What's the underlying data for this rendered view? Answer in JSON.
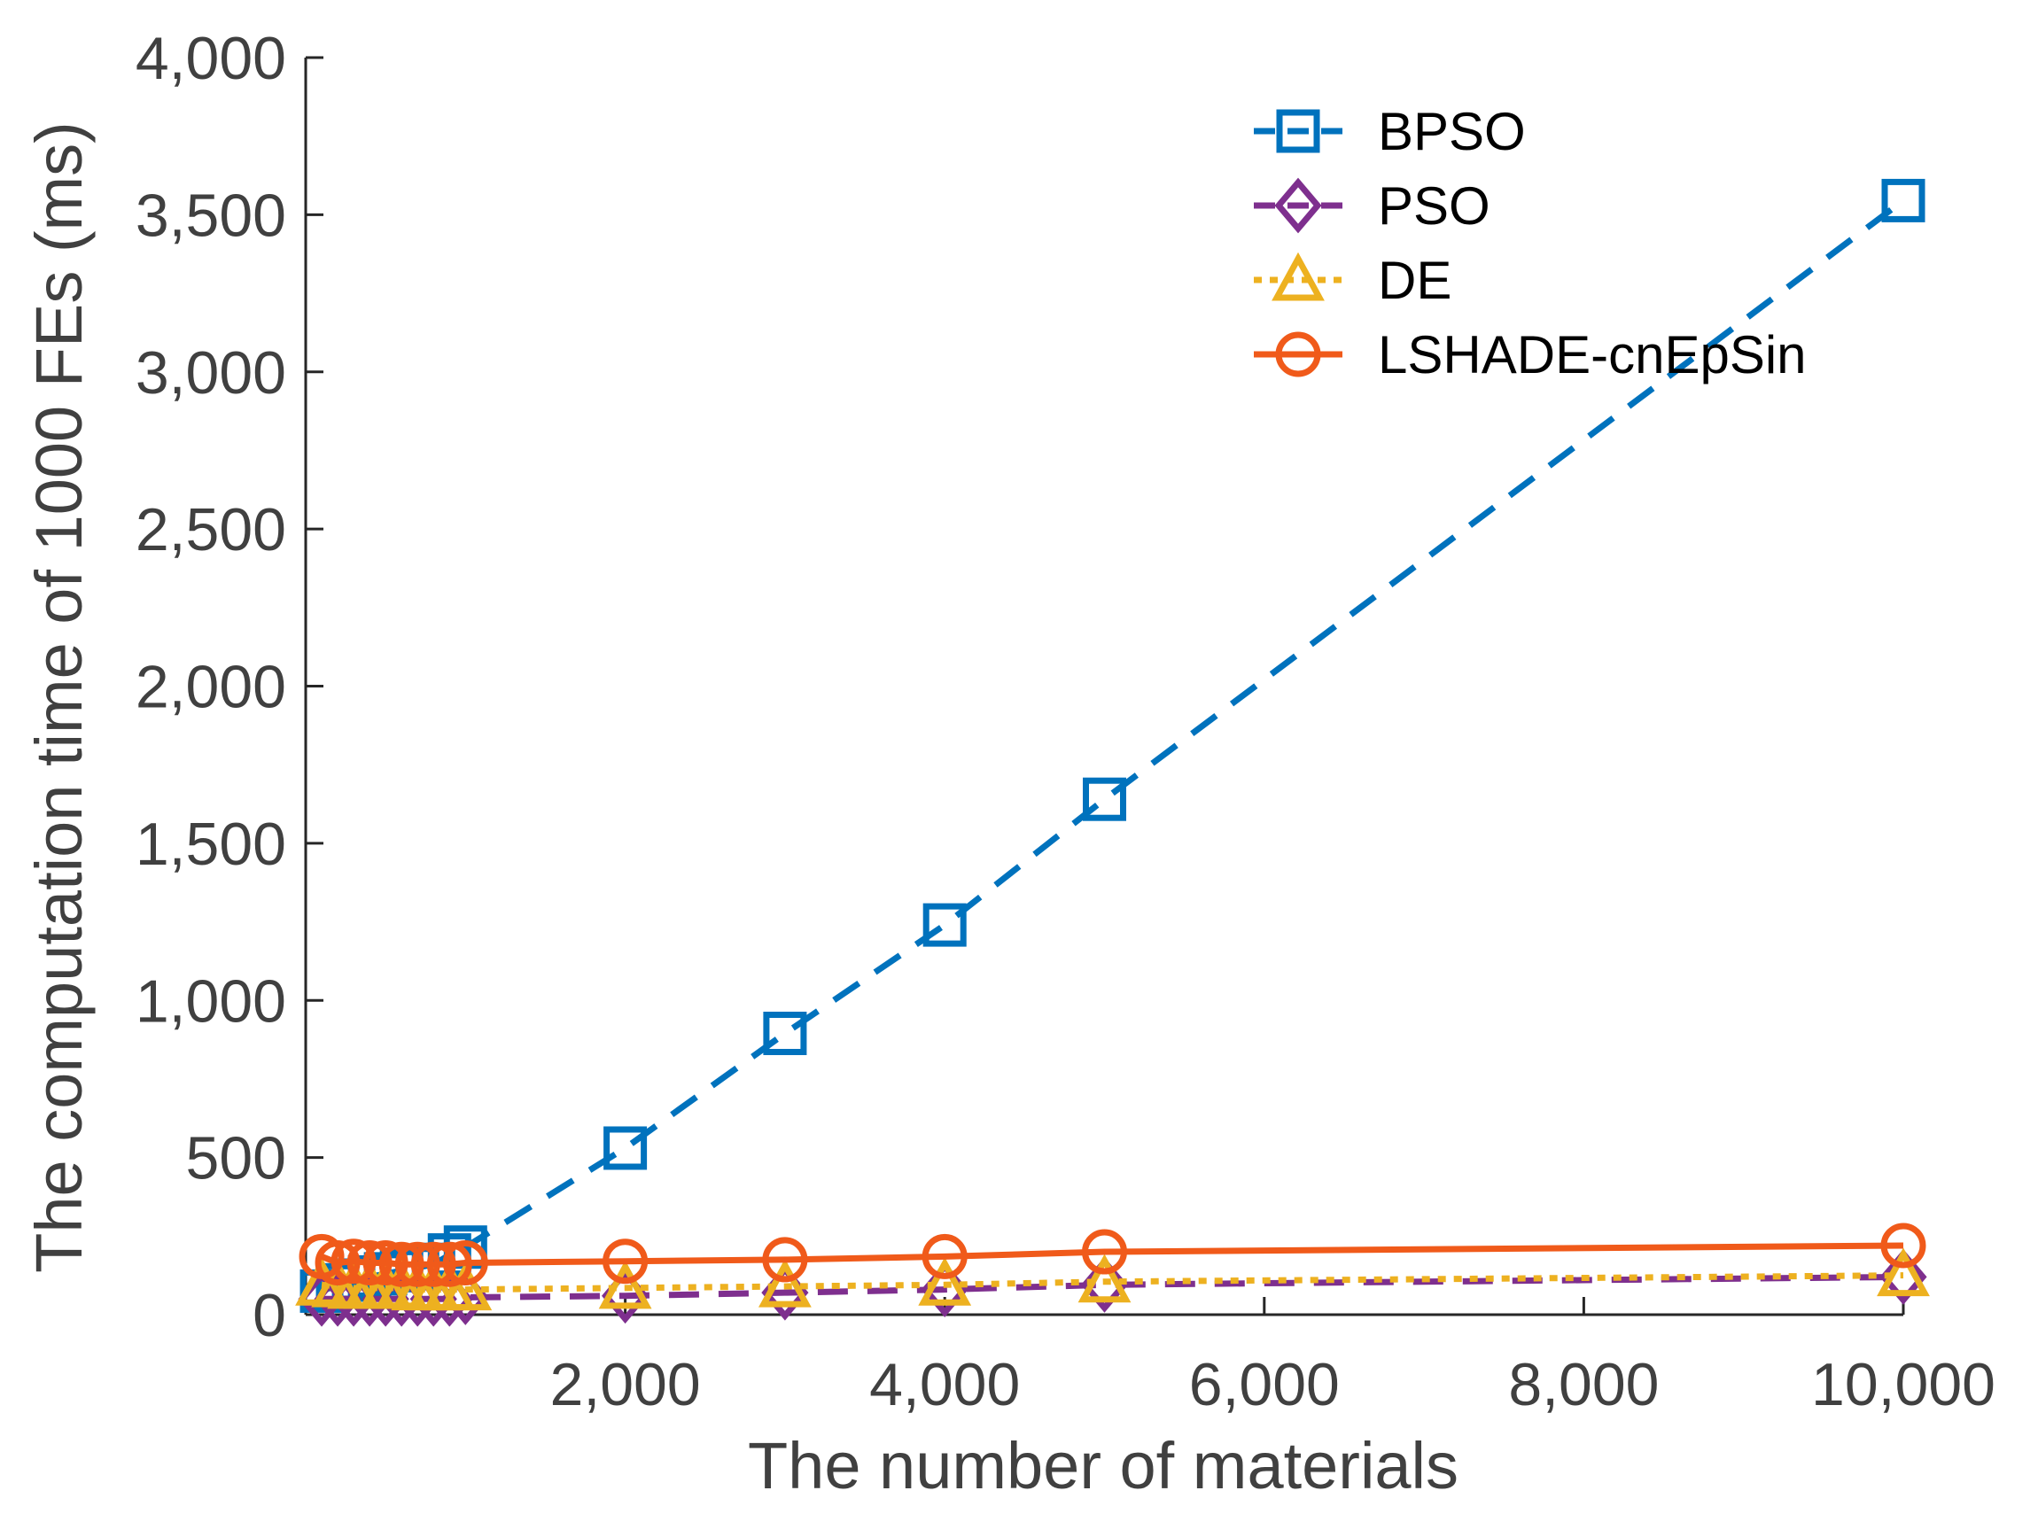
{
  "chart_data": {
    "type": "line",
    "title": "",
    "xlabel": "The number of materials",
    "ylabel": "The computation time of 1000 FEs (ms)",
    "xlim": [
      0,
      10000
    ],
    "ylim": [
      0,
      4000
    ],
    "xticks": [
      2000,
      4000,
      6000,
      8000,
      10000
    ],
    "xtick_labels": [
      "2,000",
      "4,000",
      "6,000",
      "8,000",
      "10,000"
    ],
    "yticks": [
      0,
      500,
      1000,
      1500,
      2000,
      2500,
      3000,
      3500,
      4000
    ],
    "ytick_labels": [
      "0",
      "500",
      "1,000",
      "1,500",
      "2,000",
      "2,500",
      "3,000",
      "3,500",
      "4,000"
    ],
    "grid": false,
    "legend_position": "top-right",
    "x": [
      100,
      200,
      300,
      400,
      500,
      600,
      700,
      800,
      900,
      1000,
      2000,
      3000,
      4000,
      5000,
      10000
    ],
    "series": [
      {
        "name": "BPSO",
        "color": "#0072BD",
        "line_style": "dashed",
        "marker": "square",
        "values": [
          75,
          95,
          110,
          120,
          130,
          140,
          150,
          160,
          190,
          215,
          530,
          895,
          1240,
          1640,
          3545
        ]
      },
      {
        "name": "PSO",
        "color": "#7E2F8E",
        "line_style": "dashed",
        "marker": "diamond",
        "values": [
          50,
          50,
          50,
          50,
          50,
          50,
          50,
          50,
          50,
          55,
          60,
          70,
          80,
          95,
          120
        ]
      },
      {
        "name": "DE",
        "color": "#EDB120",
        "line_style": "dotted",
        "marker": "triangle",
        "values": [
          95,
          90,
          85,
          85,
          85,
          85,
          80,
          80,
          80,
          80,
          85,
          90,
          95,
          105,
          125
        ]
      },
      {
        "name": "LSHADE-cnEpSin",
        "color": "#F05A1A",
        "line_style": "solid",
        "marker": "circle",
        "values": [
          185,
          165,
          170,
          165,
          165,
          160,
          160,
          160,
          160,
          165,
          170,
          175,
          185,
          200,
          220
        ]
      }
    ]
  }
}
